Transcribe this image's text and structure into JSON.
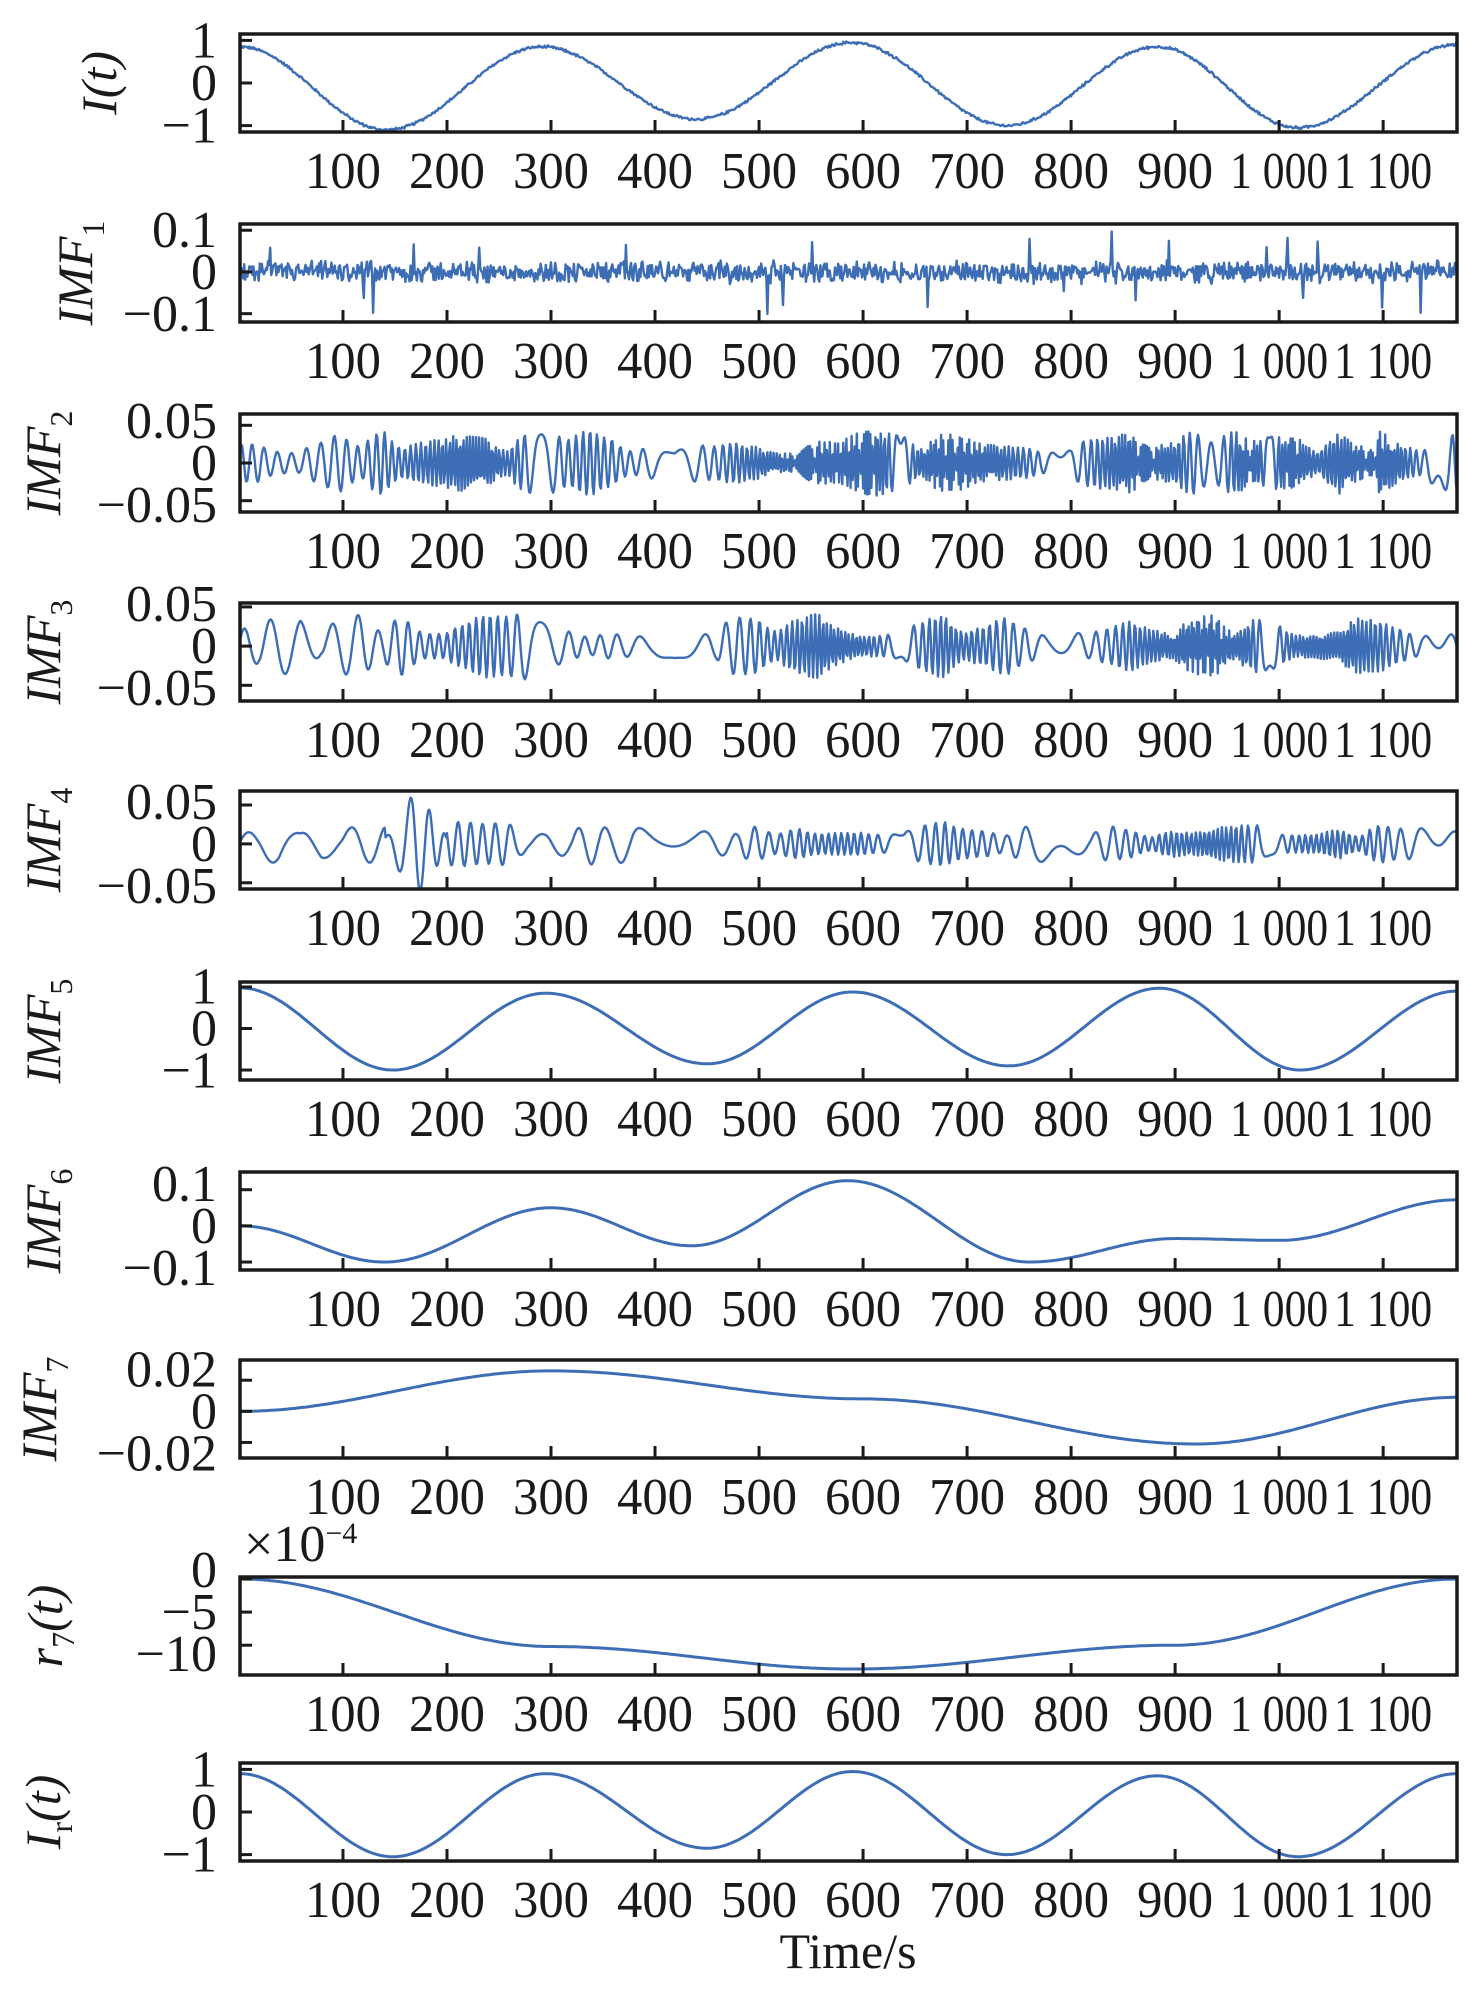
{
  "chart_data": {
    "type": "line",
    "xlabel": "Time/s",
    "xlim": [
      1,
      1171
    ],
    "x_ticks": [
      100,
      200,
      300,
      400,
      500,
      600,
      700,
      800,
      900,
      1000,
      1100
    ],
    "x_tick_labels": [
      "100",
      "200",
      "300",
      "400",
      "500",
      "600",
      "700",
      "800",
      "900",
      "1 000",
      "1 100"
    ],
    "line_color": "#3d6db5",
    "panels": [
      {
        "name": "I(t)",
        "label_main": "I(t)",
        "label_sub": "",
        "ylim": [
          -1.15,
          1.15
        ],
        "y_ticks": [
          1,
          0,
          -1
        ],
        "y_tick_labels": [
          "1",
          "0",
          "−1"
        ],
        "key_points": [
          [
            1,
            0.85
          ],
          [
            142,
            -1.1
          ],
          [
            291,
            0.85
          ],
          [
            440,
            -0.85
          ],
          [
            589,
            0.95
          ],
          [
            738,
            -1.0
          ],
          [
            883,
            0.85
          ],
          [
            1018,
            -1.05
          ],
          [
            1171,
            0.9
          ]
        ],
        "noise": {
          "kind": "white",
          "amp": 0.04
        }
      },
      {
        "name": "IMF1",
        "label_main": "IMF",
        "label_sub": "1",
        "ylim": [
          -0.12,
          0.115
        ],
        "y_ticks": [
          0.1,
          0,
          -0.1
        ],
        "y_tick_labels": [
          "0.1",
          "0",
          "−0.1"
        ],
        "key_points": [
          [
            1,
            0
          ],
          [
            1171,
            0
          ]
        ],
        "noise": {
          "kind": "white",
          "amp": 0.03,
          "spike": 0.1
        }
      },
      {
        "name": "IMF2",
        "label_main": "IMF",
        "label_sub": "2",
        "ylim": [
          -0.065,
          0.065
        ],
        "y_ticks": [
          0.05,
          0,
          -0.05
        ],
        "y_tick_labels": [
          "0.05",
          "0",
          "−0.05"
        ],
        "key_points": [
          [
            1,
            0
          ],
          [
            1171,
            0
          ]
        ],
        "noise": {
          "kind": "osc",
          "amp": 0.05,
          "period": 11
        }
      },
      {
        "name": "IMF3",
        "label_main": "IMF",
        "label_sub": "3",
        "ylim": [
          -0.07,
          0.055
        ],
        "y_ticks": [
          0.05,
          0,
          -0.05
        ],
        "y_tick_labels": [
          "0.05",
          "0",
          "−0.05"
        ],
        "key_points": [
          [
            1,
            0
          ],
          [
            1171,
            0
          ]
        ],
        "noise": {
          "kind": "osc",
          "amp": 0.045,
          "period": 24
        }
      },
      {
        "name": "IMF4",
        "label_main": "IMF",
        "label_sub": "4",
        "ylim": [
          -0.058,
          0.068
        ],
        "y_ticks": [
          0.05,
          0,
          -0.05
        ],
        "y_tick_labels": [
          "0.05",
          "0",
          "−0.05"
        ],
        "key_points": [
          [
            1,
            0
          ],
          [
            1171,
            0
          ]
        ],
        "noise": {
          "kind": "osc",
          "amp": 0.03,
          "period": 42,
          "burst_at": 170,
          "burst_amp": 0.065
        }
      },
      {
        "name": "IMF5",
        "label_main": "IMF",
        "label_sub": "5",
        "ylim": [
          -1.24,
          1.12
        ],
        "y_ticks": [
          1,
          0,
          -1
        ],
        "y_tick_labels": [
          "1",
          "0",
          "−1"
        ],
        "key_points": [
          [
            1,
            0.98
          ],
          [
            148,
            -1.0
          ],
          [
            295,
            0.85
          ],
          [
            450,
            -0.85
          ],
          [
            590,
            0.88
          ],
          [
            740,
            -0.9
          ],
          [
            885,
            0.97
          ],
          [
            1020,
            -1.0
          ],
          [
            1171,
            0.9
          ]
        ]
      },
      {
        "name": "IMF6",
        "label_main": "IMF",
        "label_sub": "6",
        "ylim": [
          -0.122,
          0.149
        ],
        "y_ticks": [
          0.1,
          0,
          -0.1
        ],
        "y_tick_labels": [
          "0.1",
          "0",
          "−0.1"
        ],
        "key_points": [
          [
            1,
            0.0
          ],
          [
            140,
            -0.1
          ],
          [
            300,
            0.05
          ],
          [
            435,
            -0.055
          ],
          [
            585,
            0.125
          ],
          [
            760,
            -0.1
          ],
          [
            900,
            -0.035
          ],
          [
            1000,
            -0.04
          ],
          [
            1171,
            0.072
          ]
        ]
      },
      {
        "name": "IMF7",
        "label_main": "IMF",
        "label_sub": "7",
        "ylim": [
          -0.03,
          0.033
        ],
        "y_ticks": [
          0.02,
          0,
          -0.02
        ],
        "y_tick_labels": [
          "0.02",
          "0",
          "−0.02"
        ],
        "key_points": [
          [
            1,
            0.0
          ],
          [
            300,
            0.026
          ],
          [
            600,
            0.008
          ],
          [
            920,
            -0.021
          ],
          [
            1171,
            0.009
          ]
        ]
      },
      {
        "name": "r7(t)",
        "label_main": "r",
        "label_sub": "7",
        "label_suffix": "(t)",
        "ylim": [
          -14.5,
          0.3
        ],
        "y_ticks": [
          0,
          -5,
          -10
        ],
        "y_tick_labels": [
          "0",
          "−5",
          "−10"
        ],
        "scale_note_base": "×10",
        "scale_note_exp": "−4",
        "key_points": [
          [
            1,
            0
          ],
          [
            300,
            -10.2
          ],
          [
            590,
            -13.6
          ],
          [
            900,
            -10
          ],
          [
            1171,
            0
          ]
        ]
      },
      {
        "name": "Ir(t)",
        "label_main": "I",
        "label_sub": "r",
        "label_suffix": "(t)",
        "ylim": [
          -1.15,
          1.15
        ],
        "y_ticks": [
          1,
          0,
          -1
        ],
        "y_tick_labels": [
          "1",
          "0",
          "−1"
        ],
        "key_points": [
          [
            1,
            0.9
          ],
          [
            148,
            -1.05
          ],
          [
            295,
            0.9
          ],
          [
            450,
            -0.85
          ],
          [
            590,
            0.95
          ],
          [
            738,
            -1.0
          ],
          [
            883,
            0.85
          ],
          [
            1018,
            -1.05
          ],
          [
            1171,
            0.9
          ]
        ]
      }
    ]
  }
}
